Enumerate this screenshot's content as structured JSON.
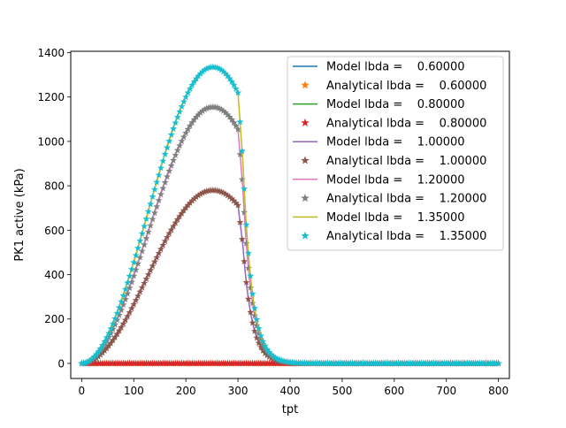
{
  "chart_data": {
    "type": "line",
    "title": "",
    "xlabel": "tpt",
    "ylabel": "PK1 active (kPa)",
    "xlim": [
      -21,
      821
    ],
    "ylim": [
      -68,
      1406
    ],
    "xticks": [
      0,
      100,
      200,
      300,
      400,
      500,
      600,
      700,
      800
    ],
    "yticks": [
      0,
      200,
      400,
      600,
      800,
      1000,
      1200,
      1400
    ],
    "grid": false,
    "legend_position": "top-right",
    "t_end": 800,
    "series": [
      {
        "name": "Model lbda =    0.60000",
        "kind": "line",
        "color": "#1f77b4",
        "peak": 0,
        "cutoff": 300,
        "drop_width": 9.5,
        "drop_coeff": 0.064
      },
      {
        "name": "Analytical lbda =    0.60000",
        "kind": "marker",
        "color": "#ff7f0e",
        "peak": 0,
        "cutoff": 300,
        "drop_width": 9.5,
        "drop_coeff": 0.064
      },
      {
        "name": "Model lbda =    0.80000",
        "kind": "line",
        "color": "#2ca02c",
        "peak": 0,
        "cutoff": 300,
        "drop_width": 9.5,
        "drop_coeff": 0.064
      },
      {
        "name": "Analytical lbda =    0.80000",
        "kind": "marker",
        "color": "#d62728",
        "peak": 0,
        "cutoff": 300,
        "drop_width": 9.5,
        "drop_coeff": 0.064
      },
      {
        "name": "Model lbda =    1.00000",
        "kind": "line",
        "color": "#9467bd",
        "peak": 780,
        "cutoff": 300,
        "drop_width": 9.5,
        "drop_coeff": 0.064
      },
      {
        "name": "Analytical lbda =    1.00000",
        "kind": "marker",
        "color": "#8c564b",
        "peak": 780,
        "cutoff": 300,
        "drop_width": 9.5,
        "drop_coeff": 0.064
      },
      {
        "name": "Model lbda =    1.20000",
        "kind": "line",
        "color": "#e377c2",
        "peak": 1155,
        "cutoff": 300,
        "drop_width": 9.5,
        "drop_coeff": 0.064
      },
      {
        "name": "Analytical lbda =    1.20000",
        "kind": "marker",
        "color": "#7f7f7f",
        "peak": 1155,
        "cutoff": 300,
        "drop_width": 9.5,
        "drop_coeff": 0.064
      },
      {
        "name": "Model lbda =    1.35000",
        "kind": "line",
        "color": "#bcbd22",
        "peak": 1335,
        "cutoff": 300,
        "drop_width": 9.5,
        "drop_coeff": 0.064
      },
      {
        "name": "Analytical lbda =    1.35000",
        "kind": "marker",
        "color": "#17becf",
        "peak": 1335,
        "cutoff": 300,
        "drop_width": 9.5,
        "drop_coeff": 0.064
      }
    ]
  }
}
